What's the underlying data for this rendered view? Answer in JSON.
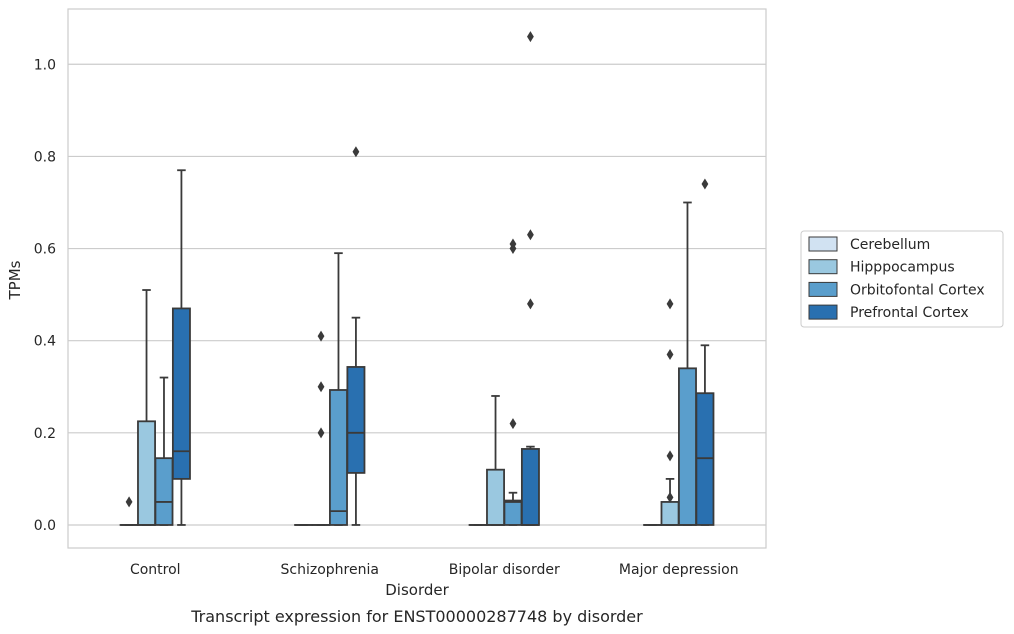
{
  "chart_data": {
    "type": "box",
    "caption": "Transcript expression for ENST00000287748 by disorder",
    "xlabel": "Disorder",
    "ylabel": "TPMs",
    "ylim": [
      -0.05,
      1.12
    ],
    "yticks": [
      0.0,
      0.2,
      0.4,
      0.6,
      0.8,
      1.0
    ],
    "ytick_labels": [
      "0.0",
      "0.2",
      "0.4",
      "0.6",
      "0.8",
      "1.0"
    ],
    "grid": "horizontal",
    "legend_position": "right",
    "categories": [
      "Control",
      "Schizophrenia",
      "Bipolar disorder",
      "Major depression"
    ],
    "series": [
      {
        "name": "Cerebellum",
        "color": "#d1e2f2",
        "boxes": [
          {
            "whislo": 0.0,
            "q1": 0.0,
            "med": 0.0,
            "q3": 0.0,
            "whishi": 0.0,
            "fliers": [
              0.05
            ]
          },
          {
            "whislo": 0.0,
            "q1": 0.0,
            "med": 0.0,
            "q3": 0.0,
            "whishi": 0.0,
            "fliers": []
          },
          {
            "whislo": 0.0,
            "q1": 0.0,
            "med": 0.0,
            "q3": 0.0,
            "whishi": 0.0,
            "fliers": []
          },
          {
            "whislo": 0.0,
            "q1": 0.0,
            "med": 0.0,
            "q3": 0.0,
            "whishi": 0.0,
            "fliers": []
          }
        ]
      },
      {
        "name": "Hipppocampus",
        "color": "#9ac8e0",
        "boxes": [
          {
            "whislo": 0.0,
            "q1": 0.0,
            "med": 0.0,
            "q3": 0.225,
            "whishi": 0.51,
            "fliers": []
          },
          {
            "whislo": 0.0,
            "q1": 0.0,
            "med": 0.0,
            "q3": 0.0,
            "whishi": 0.0,
            "fliers": [
              0.2,
              0.3,
              0.41
            ]
          },
          {
            "whislo": 0.0,
            "q1": 0.0,
            "med": 0.0,
            "q3": 0.12,
            "whishi": 0.28,
            "fliers": []
          },
          {
            "whislo": 0.0,
            "q1": 0.0,
            "med": 0.0,
            "q3": 0.05,
            "whishi": 0.1,
            "fliers": [
              0.06,
              0.15,
              0.37,
              0.48
            ]
          }
        ]
      },
      {
        "name": "Orbitofontal Cortex",
        "color": "#5a9ecc",
        "boxes": [
          {
            "whislo": 0.0,
            "q1": 0.0,
            "med": 0.05,
            "q3": 0.145,
            "whishi": 0.32,
            "fliers": []
          },
          {
            "whislo": 0.0,
            "q1": 0.0,
            "med": 0.03,
            "q3": 0.293,
            "whishi": 0.59,
            "fliers": []
          },
          {
            "whislo": 0.0,
            "q1": 0.0,
            "med": 0.05,
            "q3": 0.053,
            "whishi": 0.07,
            "fliers": [
              0.22,
              0.6,
              0.61
            ]
          },
          {
            "whislo": 0.0,
            "q1": 0.0,
            "med": 0.0,
            "q3": 0.34,
            "whishi": 0.7,
            "fliers": []
          }
        ]
      },
      {
        "name": "Prefrontal Cortex",
        "color": "#2970b0",
        "boxes": [
          {
            "whislo": 0.0,
            "q1": 0.1,
            "med": 0.16,
            "q3": 0.47,
            "whishi": 0.77,
            "fliers": []
          },
          {
            "whislo": 0.0,
            "q1": 0.113,
            "med": 0.2,
            "q3": 0.343,
            "whishi": 0.45,
            "fliers": [
              0.81
            ]
          },
          {
            "whislo": 0.0,
            "q1": 0.0,
            "med": 0.0,
            "q3": 0.165,
            "whishi": 0.17,
            "fliers": [
              0.48,
              0.63,
              1.06
            ]
          },
          {
            "whislo": 0.0,
            "q1": 0.0,
            "med": 0.145,
            "q3": 0.286,
            "whishi": 0.39,
            "fliers": [
              0.74
            ]
          }
        ]
      }
    ]
  }
}
